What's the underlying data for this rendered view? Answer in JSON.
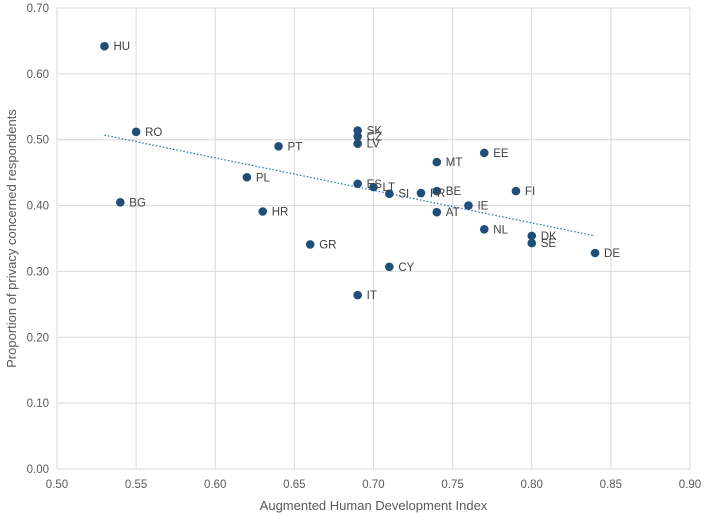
{
  "chart_data": {
    "type": "scatter",
    "xlabel": "Augmented Human Development Index",
    "ylabel": "Proportion of privacy concerned respondents",
    "xlim": [
      0.5,
      0.9
    ],
    "ylim": [
      0.0,
      0.7
    ],
    "x_ticks": [
      "0.50",
      "0.55",
      "0.60",
      "0.65",
      "0.70",
      "0.75",
      "0.80",
      "0.85",
      "0.90"
    ],
    "y_ticks": [
      "0.00",
      "0.10",
      "0.20",
      "0.30",
      "0.40",
      "0.50",
      "0.60",
      "0.70"
    ],
    "grid": true,
    "point_color": "#1f4e79",
    "trendline": {
      "style": "dotted linear",
      "color": "#2e75b6",
      "from": [
        0.53,
        0.507
      ],
      "to": [
        0.84,
        0.354
      ]
    },
    "points": [
      {
        "label": "HU",
        "x": 0.53,
        "y": 0.642
      },
      {
        "label": "RO",
        "x": 0.55,
        "y": 0.512
      },
      {
        "label": "BG",
        "x": 0.54,
        "y": 0.405
      },
      {
        "label": "PL",
        "x": 0.62,
        "y": 0.443
      },
      {
        "label": "PT",
        "x": 0.64,
        "y": 0.49
      },
      {
        "label": "HR",
        "x": 0.63,
        "y": 0.391
      },
      {
        "label": "GR",
        "x": 0.66,
        "y": 0.341
      },
      {
        "label": "SK",
        "x": 0.69,
        "y": 0.514
      },
      {
        "label": "CZ",
        "x": 0.69,
        "y": 0.505
      },
      {
        "label": "LV",
        "x": 0.69,
        "y": 0.494
      },
      {
        "label": "ES",
        "x": 0.69,
        "y": 0.433
      },
      {
        "label": "LT",
        "x": 0.7,
        "y": 0.428
      },
      {
        "label": "IT",
        "x": 0.69,
        "y": 0.264
      },
      {
        "label": "SI",
        "x": 0.71,
        "y": 0.418
      },
      {
        "label": "CY",
        "x": 0.71,
        "y": 0.307
      },
      {
        "label": "FR",
        "x": 0.73,
        "y": 0.419
      },
      {
        "label": "BE",
        "x": 0.74,
        "y": 0.422
      },
      {
        "label": "MT",
        "x": 0.74,
        "y": 0.466
      },
      {
        "label": "AT",
        "x": 0.74,
        "y": 0.39
      },
      {
        "label": "IE",
        "x": 0.76,
        "y": 0.4
      },
      {
        "label": "EE",
        "x": 0.77,
        "y": 0.48
      },
      {
        "label": "NL",
        "x": 0.77,
        "y": 0.364
      },
      {
        "label": "FI",
        "x": 0.79,
        "y": 0.422
      },
      {
        "label": "DK",
        "x": 0.8,
        "y": 0.354
      },
      {
        "label": "SE",
        "x": 0.8,
        "y": 0.343
      },
      {
        "label": "DE",
        "x": 0.84,
        "y": 0.328
      }
    ]
  }
}
